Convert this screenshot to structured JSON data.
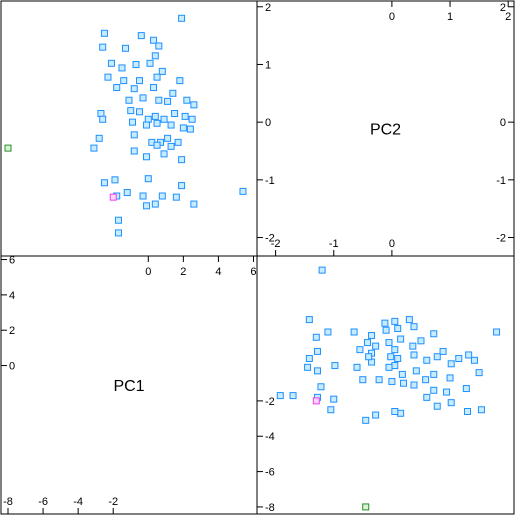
{
  "chart_data": {
    "type": "scatter",
    "layout": "scatterplot-matrix",
    "variables": [
      "PC1",
      "PC2"
    ],
    "ranges": {
      "PC1": [
        -8.4,
        6.2
      ],
      "PC2": [
        -2.32,
        2.1
      ]
    },
    "ticks": {
      "PC1_left": [
        "-8",
        "-6",
        "-4",
        "-2"
      ],
      "PC1_right": [
        "0",
        "2",
        "4",
        "6"
      ],
      "PC1_left_axis": [
        "6",
        "4",
        "2",
        "0"
      ],
      "PC1_right_axis": [
        "-2",
        "-4",
        "-6",
        "-8"
      ],
      "PC2_top_row": [
        "0",
        "1",
        "2"
      ],
      "PC2_left_col": [
        "2",
        "1",
        "0"
      ],
      "PC2_left_col_lower": [
        "-1",
        "-2"
      ],
      "PC2_bottom": [
        "-2",
        "-1",
        "0"
      ],
      "PC2_right_axis": [
        "2",
        "0",
        "-1",
        "-2"
      ]
    },
    "colors": {
      "main": "#1e90ff",
      "main_fill": "#c8ecff",
      "outlier_green": "#2e8b2e",
      "outlier_green_fill": "#d7f5d0",
      "outlier_pink": "#ee40ee",
      "outlier_pink_fill": "#ffd6ff"
    },
    "series": [
      {
        "group": "main",
        "points": [
          [
            -2.5,
            1.54
          ],
          [
            -2.6,
            1.3
          ],
          [
            -1.3,
            1.28
          ],
          [
            -0.4,
            1.5
          ],
          [
            0.3,
            1.42
          ],
          [
            0.6,
            1.32
          ],
          [
            0.4,
            1.15
          ],
          [
            1.9,
            1.8
          ],
          [
            -2.1,
            1.02
          ],
          [
            -1.5,
            0.94
          ],
          [
            -0.7,
            1.0
          ],
          [
            0.1,
            1.02
          ],
          [
            0.8,
            0.88
          ],
          [
            -2.3,
            0.78
          ],
          [
            -1.4,
            0.72
          ],
          [
            -0.5,
            0.72
          ],
          [
            0.5,
            0.78
          ],
          [
            1.8,
            0.72
          ],
          [
            -1.8,
            0.6
          ],
          [
            -0.8,
            0.58
          ],
          [
            0.3,
            0.6
          ],
          [
            1.4,
            0.5
          ],
          [
            2.2,
            0.38
          ],
          [
            2.6,
            0.3
          ],
          [
            -1.1,
            0.38
          ],
          [
            -0.3,
            0.42
          ],
          [
            0.6,
            0.38
          ],
          [
            1.1,
            0.36
          ],
          [
            -2.7,
            0.15
          ],
          [
            -2.6,
            0.05
          ],
          [
            -1.0,
            0.2
          ],
          [
            -0.5,
            0.18
          ],
          [
            0.0,
            0.05
          ],
          [
            0.4,
            0.1
          ],
          [
            0.9,
            0.05
          ],
          [
            1.5,
            0.15
          ],
          [
            2.1,
            0.1
          ],
          [
            2.5,
            0.05
          ],
          [
            -0.9,
            0.0
          ],
          [
            -0.1,
            -0.05
          ],
          [
            0.5,
            -0.02
          ],
          [
            1.3,
            -0.05
          ],
          [
            2.0,
            -0.1
          ],
          [
            2.4,
            -0.12
          ],
          [
            -0.8,
            -0.22
          ],
          [
            0.2,
            -0.35
          ],
          [
            0.7,
            -0.35
          ],
          [
            1.1,
            -0.28
          ],
          [
            1.7,
            -0.35
          ],
          [
            -2.8,
            -0.28
          ],
          [
            -3.1,
            -0.45
          ],
          [
            -0.8,
            -0.5
          ],
          [
            0.5,
            -0.4
          ],
          [
            1.3,
            -0.42
          ],
          [
            0.9,
            -0.55
          ],
          [
            -0.1,
            -0.6
          ],
          [
            1.9,
            -0.65
          ],
          [
            -2.5,
            -1.05
          ],
          [
            -1.9,
            -1.0
          ],
          [
            0.0,
            -0.98
          ],
          [
            1.9,
            -1.1
          ],
          [
            -1.2,
            -1.22
          ],
          [
            -0.3,
            -1.28
          ],
          [
            0.8,
            -1.28
          ],
          [
            1.6,
            -1.3
          ],
          [
            -0.1,
            -1.45
          ],
          [
            0.4,
            -1.42
          ],
          [
            2.6,
            -1.42
          ],
          [
            -1.7,
            -1.7
          ],
          [
            -1.7,
            -1.92
          ],
          [
            5.4,
            -1.2
          ],
          [
            -1.8,
            -1.28
          ]
        ]
      },
      {
        "group": "outlier_green",
        "points": [
          [
            -8.0,
            -0.45
          ]
        ]
      },
      {
        "group": "outlier_pink",
        "points": [
          [
            -2.0,
            -1.3
          ]
        ]
      }
    ],
    "title": "",
    "xlabel": "",
    "ylabel": "",
    "grid": false,
    "legend": "none"
  }
}
